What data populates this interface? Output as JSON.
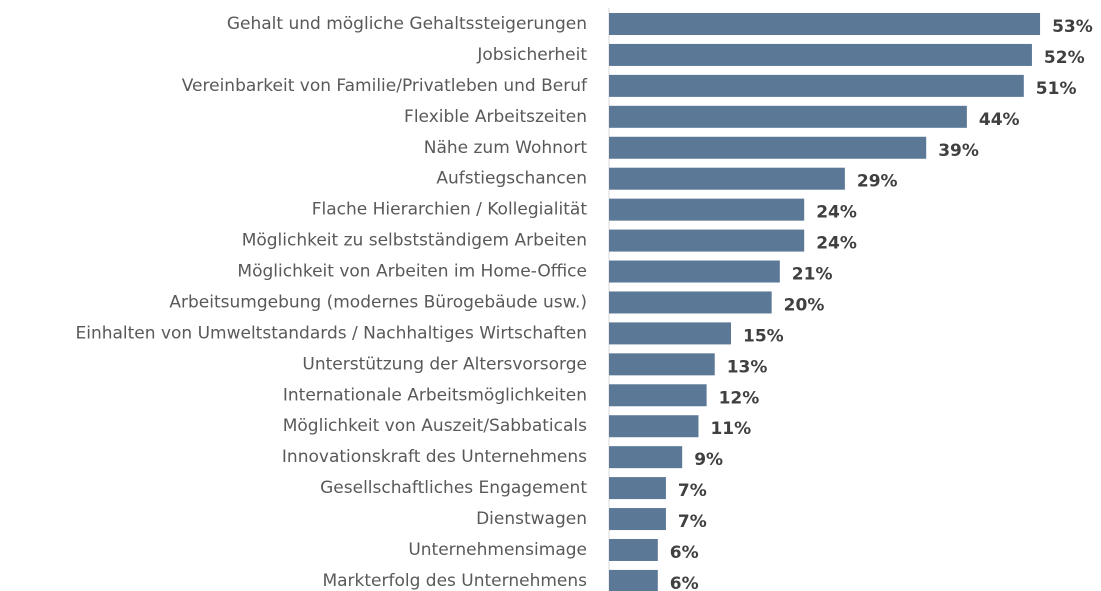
{
  "chart_data": {
    "type": "barh",
    "categories": [
      "Gehalt und mögliche Gehaltssteigerungen",
      "Jobsicherheit",
      "Vereinbarkeit von Familie/Privatleben und Beruf",
      "Flexible Arbeitszeiten",
      "Nähe zum Wohnort",
      "Aufstiegschancen",
      "Flache Hierarchien / Kollegialität",
      "Möglichkeit zu selbstständigem Arbeiten",
      "Möglichkeit von Arbeiten im Home-Office",
      "Arbeitsumgebung (modernes Bürogebäude usw.)",
      "Einhalten von Umweltstandards / Nachhaltiges Wirtschaften",
      "Unterstützung der Altersvorsorge",
      "Internationale Arbeitsmöglichkeiten",
      "Möglichkeit von Auszeit/Sabbaticals",
      "Innovationskraft des Unternehmens",
      "Gesellschaftliches Engagement",
      "Dienstwagen",
      "Unternehmensimage",
      "Markterfolg des Unternehmens"
    ],
    "values": [
      53,
      52,
      51,
      44,
      39,
      29,
      24,
      24,
      21,
      20,
      15,
      13,
      12,
      11,
      9,
      7,
      7,
      6,
      6
    ],
    "value_labels": [
      "53%",
      "52%",
      "51%",
      "44%",
      "39%",
      "29%",
      "24%",
      "24%",
      "21%",
      "20%",
      "15%",
      "13%",
      "12%",
      "11%",
      "9%",
      "7%",
      "7%",
      "6%",
      "6%"
    ],
    "color": "#5b7897",
    "xlim": [
      0,
      60
    ]
  }
}
